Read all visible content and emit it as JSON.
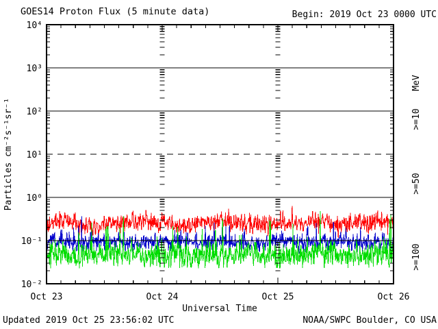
{
  "header": {
    "title": "GOES14 Proton Flux (5 minute data)",
    "begin": "Begin: 2019 Oct 23 0000 UTC"
  },
  "footer": {
    "updated": "Updated 2019 Oct 25 23:56:02 UTC",
    "credit": "NOAA/SWPC Boulder, CO USA"
  },
  "chart_data": {
    "type": "line",
    "title": "GOES14 Proton Flux (5 minute data)",
    "subtitle": "Begin: 2019 Oct 23 0000 UTC",
    "xlabel": "Universal Time",
    "ylabel": "Particles cm⁻²s⁻¹sr⁻¹",
    "right_axis_label": "MeV",
    "x_ticks": [
      "Oct 23",
      "Oct 24",
      "Oct 25",
      "Oct 26"
    ],
    "x_range": [
      "2019 Oct 23 0000 UTC",
      "2019 Oct 26 0000 UTC"
    ],
    "days": 3,
    "samples_per_day": 288,
    "cadence": "5 minute",
    "x_minor_tick_hours": 3,
    "y_axis": {
      "scale": "log",
      "min_exp": -2,
      "max_exp": 4,
      "tick_labels": [
        "10⁴",
        "10³",
        "10²",
        "10¹",
        "10⁰",
        "10⁻¹",
        "10⁻²"
      ],
      "tick_exponents": [
        4,
        3,
        2,
        1,
        0,
        -1,
        -2
      ]
    },
    "gridlines": {
      "solid_at_exp": [
        3,
        2,
        0,
        -1
      ],
      "dashed_at_exp": [
        1
      ],
      "vertical_day_boundaries": [
        "Oct 24",
        "Oct 25"
      ]
    },
    "series": [
      {
        "label": ">=10",
        "units": "MeV",
        "color": "#ff0000",
        "approx_median_flux": 0.25,
        "approx_range": [
          0.13,
          0.65
        ],
        "synth": {
          "seed": 101,
          "log_mean": -0.6,
          "log_std": 0.115,
          "wander_amp": 0.05,
          "wander_cycles": 4.3,
          "spike_prob": 0.01,
          "spike_amp": 0.25,
          "floor_log": -1.95
        }
      },
      {
        "label": ">=50",
        "units": "MeV",
        "color": "#0000cc",
        "approx_median_flux": 0.095,
        "approx_range": [
          0.055,
          0.3
        ],
        "synth": {
          "seed": 202,
          "log_mean": -1.03,
          "log_std": 0.1,
          "wander_amp": 0.02,
          "wander_cycles": 6.1,
          "spike_prob": 0.035,
          "spike_amp": 0.45,
          "floor_log": -1.95
        }
      },
      {
        "label": ">=100",
        "units": "MeV",
        "color": "#00dd00",
        "approx_median_flux": 0.05,
        "approx_range": [
          0.022,
          0.3
        ],
        "synth": {
          "seed": 303,
          "log_mean": -1.33,
          "log_std": 0.15,
          "wander_amp": 0.03,
          "wander_cycles": 5.2,
          "spike_prob": 0.04,
          "spike_amp": 0.75,
          "floor_log": -1.64
        }
      }
    ]
  }
}
